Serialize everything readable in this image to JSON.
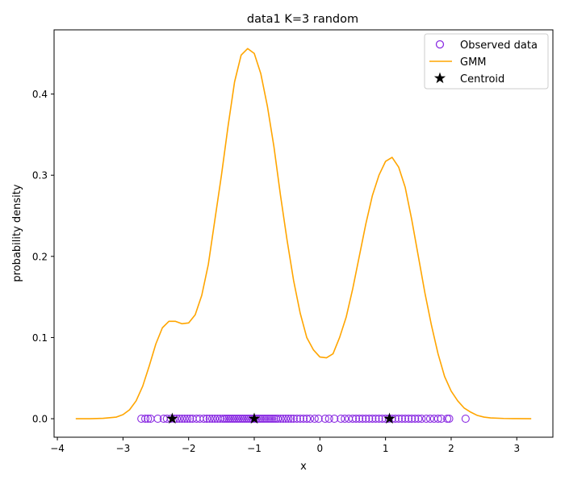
{
  "chart_data": {
    "type": "line",
    "title": "data1 K=3 random",
    "xlabel": "x",
    "ylabel": "probability density",
    "xlim": [
      -4.05,
      3.55
    ],
    "ylim": [
      -0.0228,
      0.4791
    ],
    "xticks": [
      -4,
      -3,
      -2,
      -1,
      0,
      1,
      2,
      3
    ],
    "yticks": [
      0.0,
      0.1,
      0.2,
      0.3,
      0.4
    ],
    "xtick_labels": [
      "−4",
      "−3",
      "−2",
      "−1",
      "0",
      "1",
      "2",
      "3"
    ],
    "ytick_labels": [
      "0.0",
      "0.1",
      "0.2",
      "0.3",
      "0.4"
    ],
    "grid": false,
    "legend": {
      "position": "top-right",
      "entries": [
        "Observed data",
        "GMM",
        "Centroid"
      ]
    },
    "colors": {
      "observed": "#8a2be2",
      "gmm": "#ffa500",
      "centroid": "#000000"
    },
    "series": [
      {
        "name": "GMM",
        "kind": "line",
        "x": [
          -3.72,
          -3.5,
          -3.3,
          -3.1,
          -3.0,
          -2.9,
          -2.8,
          -2.7,
          -2.6,
          -2.5,
          -2.4,
          -2.3,
          -2.2,
          -2.1,
          -2.0,
          -1.9,
          -1.8,
          -1.7,
          -1.6,
          -1.5,
          -1.4,
          -1.3,
          -1.2,
          -1.1,
          -1.0,
          -0.9,
          -0.8,
          -0.7,
          -0.6,
          -0.5,
          -0.4,
          -0.3,
          -0.2,
          -0.1,
          0.0,
          0.1,
          0.2,
          0.3,
          0.4,
          0.5,
          0.6,
          0.7,
          0.8,
          0.9,
          1.0,
          1.1,
          1.2,
          1.3,
          1.4,
          1.5,
          1.6,
          1.7,
          1.8,
          1.9,
          2.0,
          2.1,
          2.2,
          2.3,
          2.4,
          2.5,
          2.6,
          2.8,
          3.0,
          3.22
        ],
        "y": [
          0.0,
          0.0,
          0.0005,
          0.002,
          0.005,
          0.011,
          0.022,
          0.04,
          0.065,
          0.092,
          0.112,
          0.12,
          0.12,
          0.117,
          0.118,
          0.128,
          0.152,
          0.19,
          0.245,
          0.3,
          0.36,
          0.415,
          0.448,
          0.456,
          0.45,
          0.425,
          0.385,
          0.335,
          0.275,
          0.22,
          0.17,
          0.13,
          0.1,
          0.085,
          0.076,
          0.075,
          0.08,
          0.1,
          0.125,
          0.16,
          0.2,
          0.24,
          0.275,
          0.3,
          0.317,
          0.322,
          0.31,
          0.285,
          0.245,
          0.2,
          0.155,
          0.115,
          0.08,
          0.052,
          0.034,
          0.022,
          0.013,
          0.008,
          0.004,
          0.002,
          0.001,
          0.0003,
          0.0001,
          0.0
        ]
      },
      {
        "name": "Observed data",
        "kind": "scatter",
        "x": [
          -2.72,
          -2.66,
          -2.62,
          -2.58,
          -2.47,
          -2.38,
          -2.33,
          -2.27,
          -2.22,
          -2.18,
          -2.14,
          -2.1,
          -2.06,
          -2.02,
          -1.98,
          -1.94,
          -1.88,
          -1.83,
          -1.77,
          -1.72,
          -1.68,
          -1.64,
          -1.6,
          -1.56,
          -1.52,
          -1.48,
          -1.45,
          -1.42,
          -1.39,
          -1.36,
          -1.33,
          -1.3,
          -1.27,
          -1.24,
          -1.21,
          -1.18,
          -1.15,
          -1.12,
          -1.09,
          -1.06,
          -1.03,
          -1.0,
          -0.97,
          -0.94,
          -0.91,
          -0.88,
          -0.85,
          -0.82,
          -0.79,
          -0.76,
          -0.73,
          -0.7,
          -0.67,
          -0.64,
          -0.6,
          -0.56,
          -0.52,
          -0.48,
          -0.44,
          -0.4,
          -0.35,
          -0.3,
          -0.25,
          -0.2,
          -0.15,
          -0.08,
          -0.02,
          0.08,
          0.14,
          0.22,
          0.32,
          0.38,
          0.44,
          0.5,
          0.55,
          0.6,
          0.65,
          0.7,
          0.75,
          0.8,
          0.85,
          0.9,
          0.95,
          1.0,
          1.05,
          1.1,
          1.15,
          1.2,
          1.25,
          1.3,
          1.35,
          1.4,
          1.45,
          1.5,
          1.55,
          1.62,
          1.68,
          1.74,
          1.8,
          1.85,
          1.94,
          1.97,
          2.22
        ],
        "y": [
          0,
          0,
          0,
          0,
          0,
          0,
          0,
          0,
          0,
          0,
          0,
          0,
          0,
          0,
          0,
          0,
          0,
          0,
          0,
          0,
          0,
          0,
          0,
          0,
          0,
          0,
          0,
          0,
          0,
          0,
          0,
          0,
          0,
          0,
          0,
          0,
          0,
          0,
          0,
          0,
          0,
          0,
          0,
          0,
          0,
          0,
          0,
          0,
          0,
          0,
          0,
          0,
          0,
          0,
          0,
          0,
          0,
          0,
          0,
          0,
          0,
          0,
          0,
          0,
          0,
          0,
          0,
          0,
          0,
          0,
          0,
          0,
          0,
          0,
          0,
          0,
          0,
          0,
          0,
          0,
          0,
          0,
          0,
          0,
          0,
          0,
          0,
          0,
          0,
          0,
          0,
          0,
          0,
          0,
          0,
          0,
          0,
          0,
          0,
          0,
          0,
          0,
          0
        ]
      },
      {
        "name": "Centroid",
        "kind": "scatter",
        "x": [
          -2.25,
          -1.0,
          1.06
        ],
        "y": [
          0,
          0,
          0
        ]
      }
    ]
  }
}
